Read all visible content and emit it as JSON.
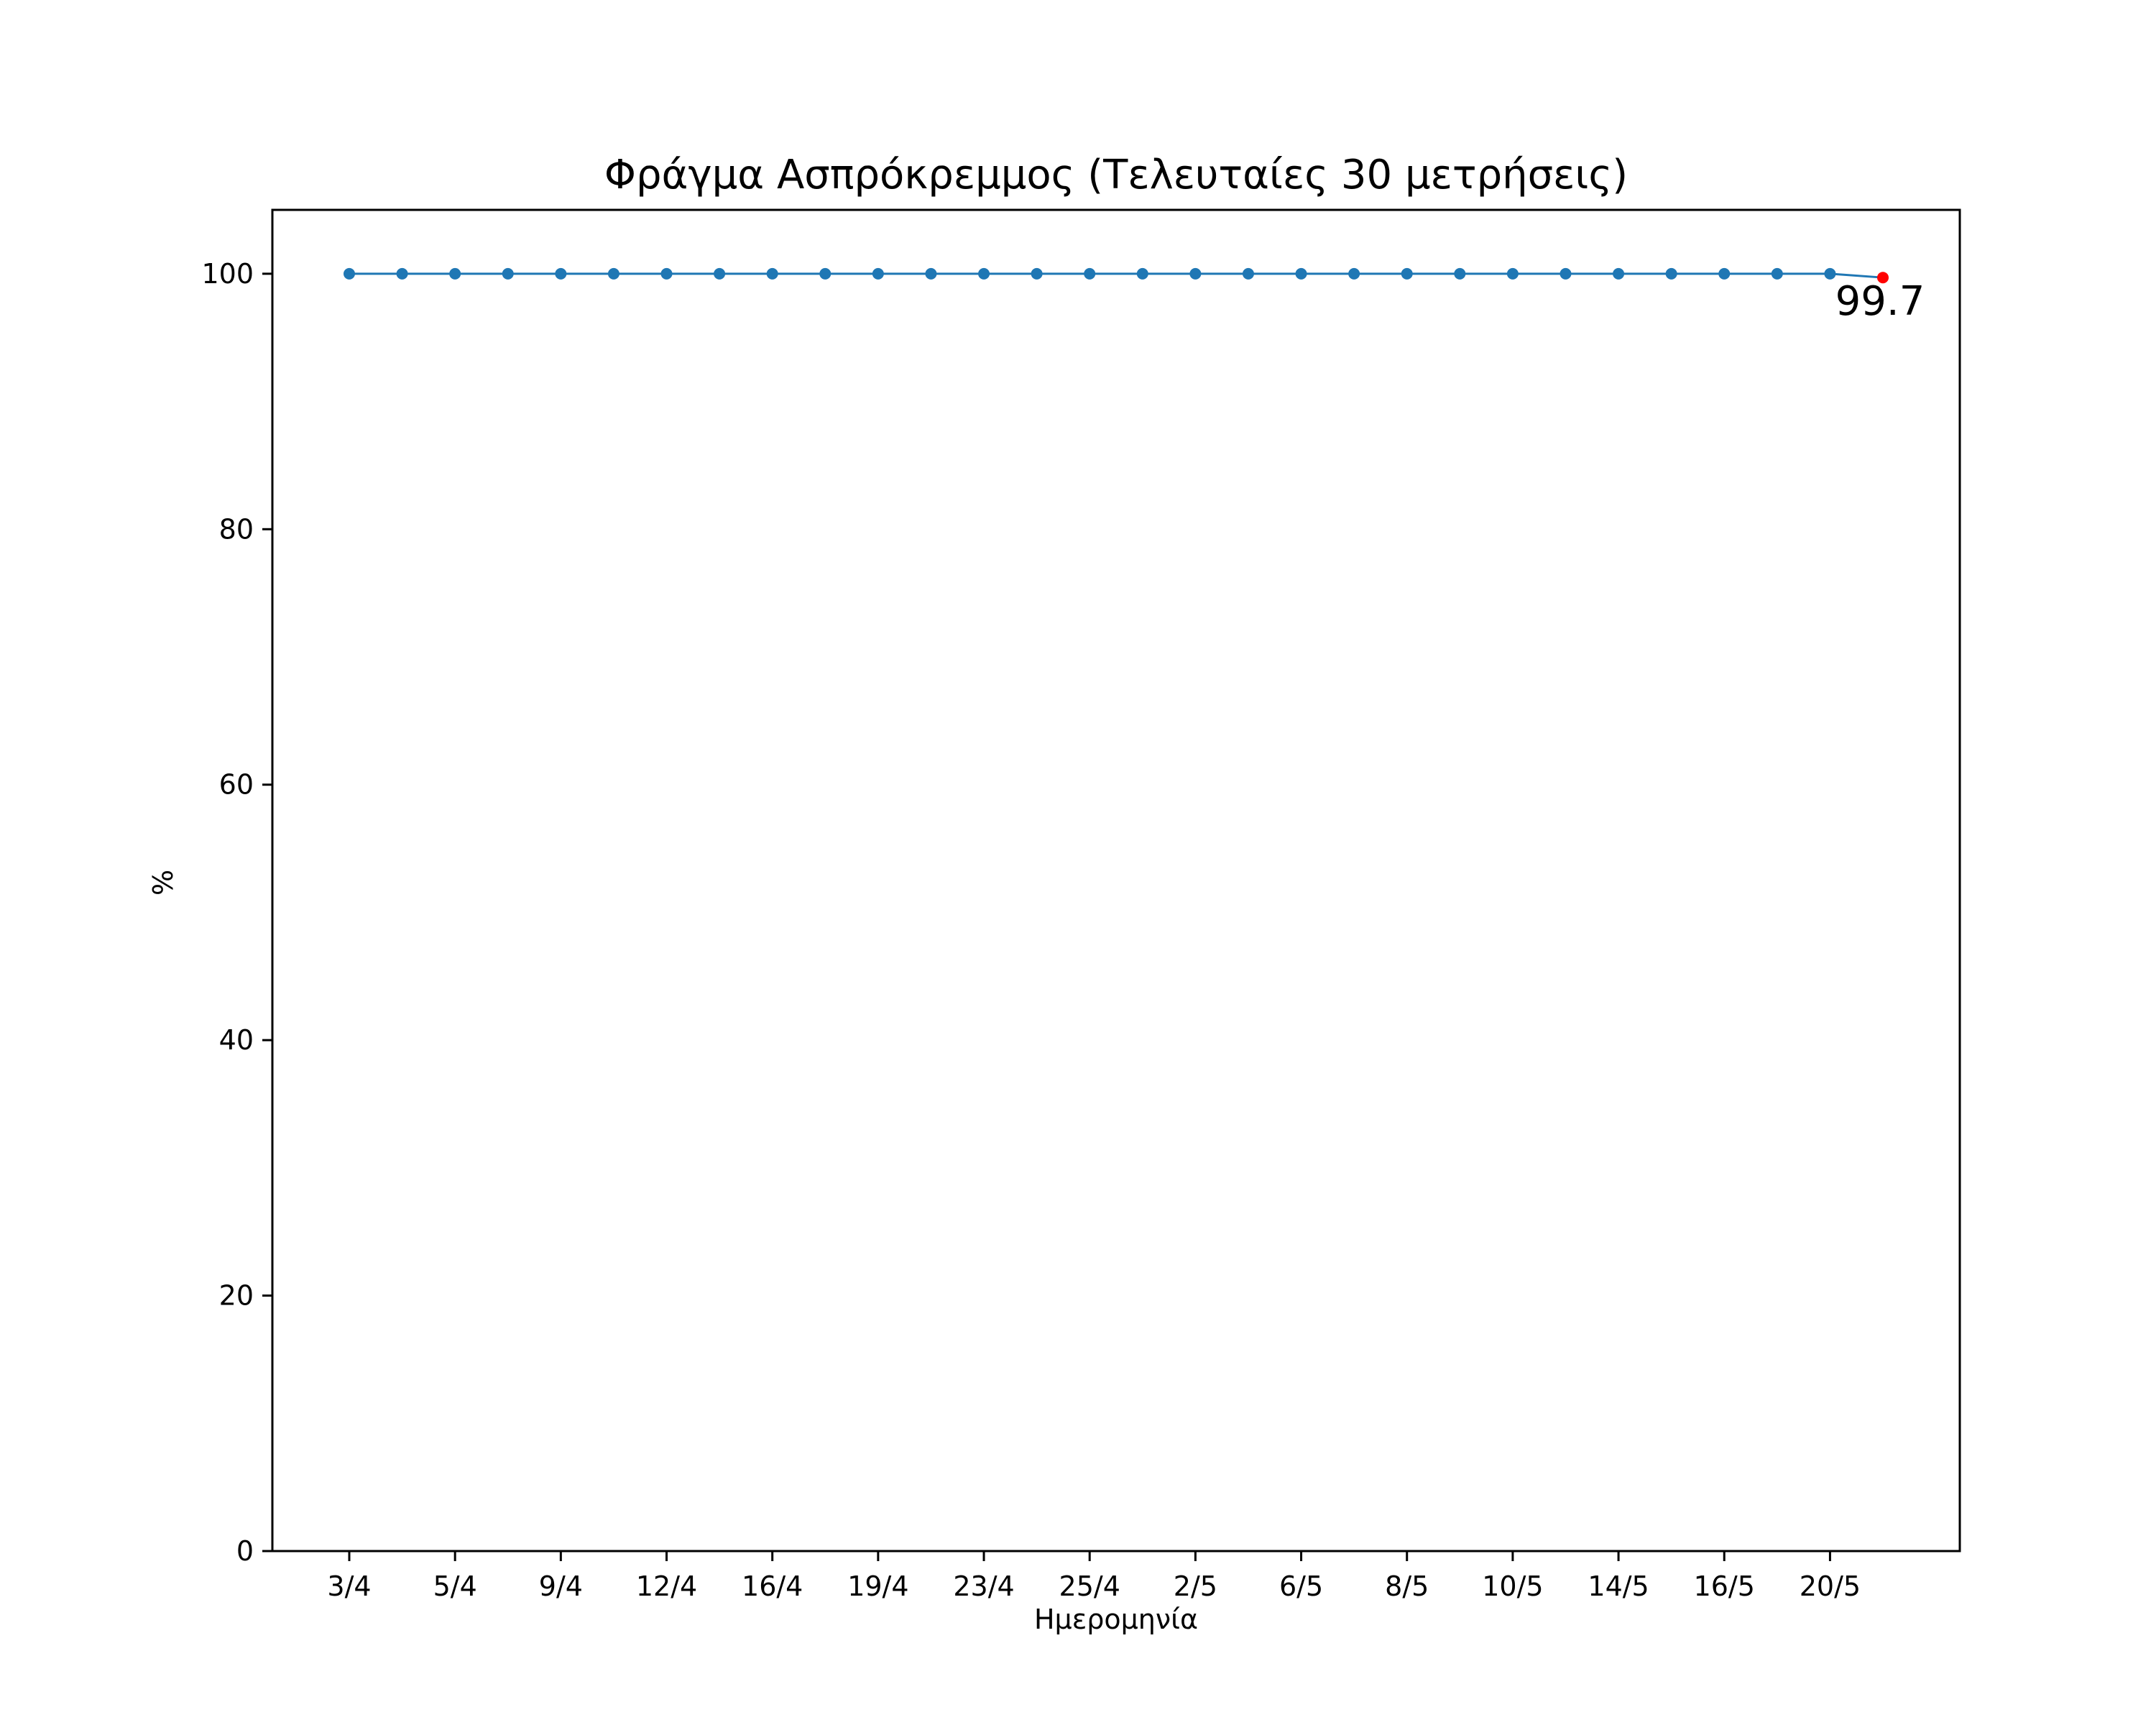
{
  "chart_data": {
    "type": "line",
    "title": "Φράγμα Ασπρόκρεμμος (Τελευταίες 30 μετρήσεις)",
    "xlabel": "Ημερομηνία",
    "ylabel": "%",
    "ylim": [
      0,
      105
    ],
    "y_ticks": [
      0,
      20,
      40,
      60,
      80,
      100
    ],
    "x_tick_labels": [
      "3/4",
      "5/4",
      "9/4",
      "12/4",
      "16/4",
      "19/4",
      "23/4",
      "25/4",
      "2/5",
      "6/5",
      "8/5",
      "10/5",
      "14/5",
      "16/5",
      "20/5"
    ],
    "x_tick_every": 2,
    "grid": false,
    "series": [
      {
        "color": "#1f77b4",
        "values": [
          100,
          100,
          100,
          100,
          100,
          100,
          100,
          100,
          100,
          100,
          100,
          100,
          100,
          100,
          100,
          100,
          100,
          100,
          100,
          100,
          100,
          100,
          100,
          100,
          100,
          100,
          100,
          100,
          100,
          99.7
        ]
      }
    ],
    "last_point": {
      "value": 99.7,
      "label": "99.7",
      "color": "#ff0000"
    }
  }
}
